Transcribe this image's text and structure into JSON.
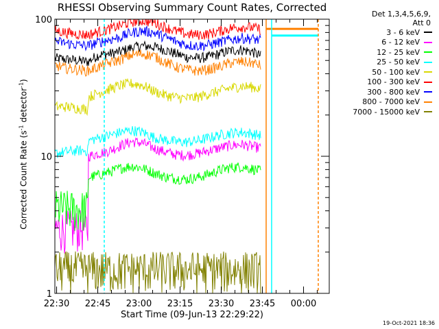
{
  "chart_data": {
    "type": "line",
    "title": "RHESSI Observing Summary Count Rates, Corrected",
    "xlabel": "Start Time (09-Jun-13 22:29:22)",
    "ylabel_main": "Corrected Count Rate (s",
    "ylabel_exp1": "-1",
    "ylabel_mid": " detector",
    "ylabel_exp2": "-1",
    "ylabel_end": ")",
    "y_scale": "log",
    "ylim": [
      1,
      100
    ],
    "y_ticks": [
      "1",
      "10",
      "100"
    ],
    "x_range_minutes": [
      0,
      100
    ],
    "x_ticks": [
      "22:30",
      "22:45",
      "23:00",
      "23:15",
      "23:30",
      "23:45",
      "00:00"
    ],
    "x_tick_minutes": [
      0.63,
      15.63,
      30.63,
      45.63,
      60.63,
      75.63,
      90.63
    ],
    "detector_info_line1": "Det 1,3,4,5,6,9,",
    "detector_info_line2": "Att 0",
    "timestamp": "19-Oct-2021 18:36",
    "vertical_markers": [
      {
        "minute": 18,
        "color": "#00ffff",
        "style": "dashed"
      },
      {
        "minute": 77,
        "color": "#ff8000",
        "style": "solid"
      },
      {
        "minute": 79,
        "color": "#00ffff",
        "style": "solid"
      },
      {
        "minute": 96,
        "color": "#ff8000",
        "style": "dashed"
      }
    ],
    "series": [
      {
        "name": "3 - 6 keV",
        "color": "#000000",
        "x": [
          0,
          4,
          8,
          12,
          16,
          20,
          24,
          28,
          32,
          36,
          40,
          44,
          48,
          52,
          56,
          60,
          64,
          68,
          72,
          75
        ],
        "y": [
          52,
          51,
          50,
          49,
          55,
          56,
          58,
          62,
          64,
          63,
          60,
          56,
          53,
          52,
          53,
          56,
          59,
          60,
          58,
          54
        ]
      },
      {
        "name": "6 - 12 keV",
        "color": "#ff00ff",
        "x": [
          0,
          4,
          8,
          12,
          12.1,
          16,
          20,
          24,
          28,
          32,
          36,
          40,
          44,
          48,
          52,
          56,
          60,
          64,
          68,
          72,
          75
        ],
        "y": [
          3,
          3,
          3,
          3,
          10,
          10.5,
          11,
          12,
          12.8,
          12.5,
          11.5,
          10.8,
          10.3,
          10.2,
          10.5,
          11,
          11.5,
          12,
          12.2,
          11.8,
          11.5
        ]
      },
      {
        "name": "12 - 25 keV",
        "color": "#00ff00",
        "x": [
          0,
          4,
          8,
          12,
          12.1,
          16,
          20,
          24,
          28,
          32,
          36,
          40,
          44,
          48,
          52,
          56,
          60,
          64,
          68,
          72,
          75
        ],
        "y": [
          4.2,
          4.2,
          4.1,
          4.2,
          7,
          7.3,
          7.7,
          8.2,
          8.5,
          8.2,
          7.6,
          7.1,
          6.9,
          6.8,
          7,
          7.4,
          7.9,
          8.3,
          8.4,
          8.1,
          7.8
        ]
      },
      {
        "name": "25 - 50 keV",
        "color": "#00ffff",
        "x": [
          0,
          4,
          8,
          12,
          12.1,
          16,
          20,
          24,
          28,
          32,
          36,
          40,
          44,
          48,
          52,
          56,
          60,
          64,
          68,
          72,
          75
        ],
        "y": [
          10.5,
          10.8,
          11,
          11,
          13,
          13.6,
          14.2,
          15,
          15.5,
          15,
          13.8,
          13.2,
          12.8,
          12.7,
          13,
          13.6,
          14.3,
          14.8,
          15,
          14.6,
          14.2
        ]
      },
      {
        "name": "50 - 100 keV",
        "color": "#d8d800",
        "x": [
          0,
          4,
          8,
          12,
          12.1,
          16,
          20,
          24,
          28,
          32,
          36,
          40,
          44,
          48,
          52,
          56,
          60,
          64,
          68,
          72,
          75
        ],
        "y": [
          23,
          23,
          22.5,
          22,
          27,
          29,
          31,
          33,
          34,
          33,
          30,
          28,
          27,
          26.5,
          27,
          28.5,
          30,
          31.5,
          32.5,
          32,
          31
        ]
      },
      {
        "name": "100 - 300 keV",
        "color": "#ff0000",
        "x": [
          0,
          4,
          8,
          12,
          16,
          20,
          24,
          28,
          32,
          36,
          40,
          44,
          48,
          52,
          56,
          60,
          64,
          68,
          72,
          75
        ],
        "y": [
          83,
          80,
          78,
          77,
          81,
          85,
          90,
          96,
          98,
          95,
          88,
          82,
          78,
          77,
          78,
          82,
          86,
          88,
          87,
          84
        ]
      },
      {
        "name": "300 - 800 keV",
        "color": "#0000ff",
        "x": [
          0,
          4,
          8,
          12,
          16,
          20,
          24,
          28,
          32,
          36,
          40,
          44,
          48,
          52,
          56,
          60,
          64,
          68,
          72,
          75
        ],
        "y": [
          69,
          67,
          65,
          64,
          68,
          71,
          74,
          80,
          82,
          80,
          74,
          69,
          65,
          64,
          65,
          68,
          71,
          73,
          72,
          70
        ]
      },
      {
        "name": "800 - 7000 keV",
        "color": "#ff8000",
        "x": [
          0,
          4,
          8,
          12,
          16,
          20,
          24,
          28,
          32,
          36,
          40,
          44,
          48,
          52,
          56,
          60,
          64,
          68,
          72,
          75
        ],
        "y": [
          46,
          44,
          43,
          42,
          45,
          48,
          51,
          55,
          56,
          54,
          49,
          45,
          43,
          42,
          43,
          45,
          48,
          49,
          48,
          46
        ]
      },
      {
        "name": "7000 - 15000 keV",
        "color": "#808000",
        "x": [
          0,
          4,
          8,
          12,
          16,
          20,
          24,
          28,
          32,
          36,
          40,
          44,
          48,
          52,
          56,
          60,
          64,
          68,
          72,
          75
        ],
        "y": [
          1.5,
          1.5,
          1.5,
          1.5,
          1.5,
          1.5,
          1.5,
          1.5,
          1.5,
          1.5,
          1.5,
          1.5,
          1.5,
          1.5,
          1.5,
          1.5,
          1.5,
          1.5,
          1.5,
          1.5
        ]
      }
    ],
    "after_gap_levels": [
      {
        "name": "800 - 7000 keV",
        "color": "#ff8000",
        "x": [
          77,
          96
        ],
        "y": 85
      },
      {
        "name": "25 - 50 keV",
        "color": "#00ffff",
        "x": [
          79,
          96
        ],
        "y": 76
      }
    ]
  }
}
